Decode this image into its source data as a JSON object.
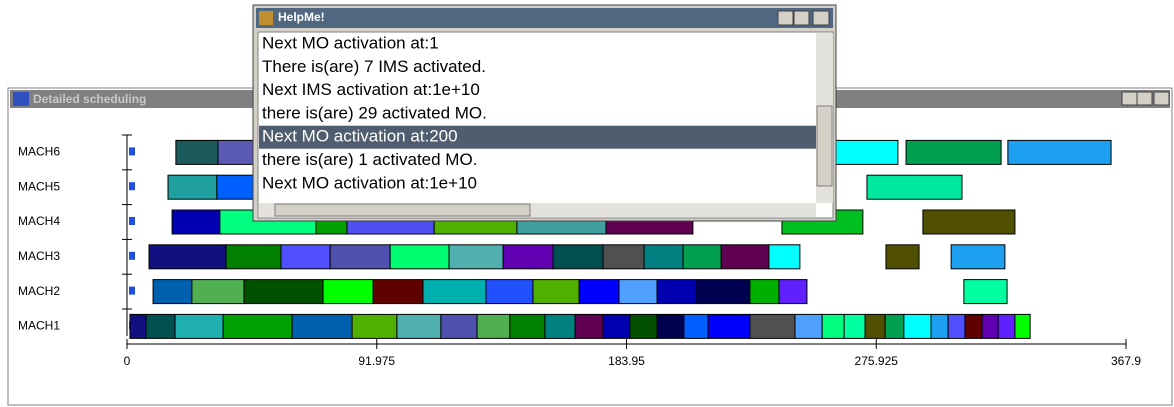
{
  "main_window": {
    "title": "Detailed scheduling"
  },
  "gantt": {
    "xlim": [
      0,
      367.9
    ],
    "xticks": [
      0,
      91.975,
      183.95,
      275.925,
      367.9
    ],
    "machines": [
      {
        "name": "MACH6",
        "tasks": [
          {
            "start": 18.0,
            "end": 33.5,
            "color": "#1a5a5a"
          },
          {
            "start": 33.5,
            "end": 49.0,
            "color": "#5a5ab4"
          },
          {
            "start": 255.2,
            "end": 283.9,
            "color": "#00ffff"
          },
          {
            "start": 286.9,
            "end": 321.9,
            "color": "#00a050"
          },
          {
            "start": 324.4,
            "end": 362.4,
            "color": "#1ea0f0"
          }
        ]
      },
      {
        "name": "MACH5",
        "tasks": [
          {
            "start": 15.1,
            "end": 33.1,
            "color": "#20a0a0"
          },
          {
            "start": 33.1,
            "end": 49.0,
            "color": "#0060ff"
          },
          {
            "start": 272.5,
            "end": 307.5,
            "color": "#00e8a0"
          }
        ]
      },
      {
        "name": "MACH4",
        "tasks": [
          {
            "start": 16.6,
            "end": 34.2,
            "color": "#0000b0"
          },
          {
            "start": 34.2,
            "end": 69.6,
            "color": "#00ff80"
          },
          {
            "start": 69.6,
            "end": 81.0,
            "color": "#00a000"
          },
          {
            "start": 81.0,
            "end": 113.1,
            "color": "#5050f0"
          },
          {
            "start": 113.1,
            "end": 143.6,
            "color": "#50b000"
          },
          {
            "start": 143.6,
            "end": 176.4,
            "color": "#40a0a0"
          },
          {
            "start": 176.4,
            "end": 208.4,
            "color": "#600050"
          },
          {
            "start": 241.2,
            "end": 271.0,
            "color": "#00c020"
          },
          {
            "start": 293.1,
            "end": 327.0,
            "color": "#505000"
          }
        ]
      },
      {
        "name": "MACH3",
        "tasks": [
          {
            "start": 8.1,
            "end": 36.5,
            "color": "#101080"
          },
          {
            "start": 36.5,
            "end": 56.7,
            "color": "#008000"
          },
          {
            "start": 56.7,
            "end": 74.8,
            "color": "#5050ff"
          },
          {
            "start": 74.8,
            "end": 96.9,
            "color": "#5050b0"
          },
          {
            "start": 96.9,
            "end": 118.6,
            "color": "#00ff70"
          },
          {
            "start": 118.6,
            "end": 138.5,
            "color": "#50b0b0"
          },
          {
            "start": 138.5,
            "end": 156.9,
            "color": "#6000b0"
          },
          {
            "start": 156.9,
            "end": 175.3,
            "color": "#005050"
          },
          {
            "start": 175.3,
            "end": 190.4,
            "color": "#505050"
          },
          {
            "start": 190.4,
            "end": 204.8,
            "color": "#008080"
          },
          {
            "start": 204.8,
            "end": 218.8,
            "color": "#00a050"
          },
          {
            "start": 218.8,
            "end": 236.4,
            "color": "#600050"
          },
          {
            "start": 236.4,
            "end": 247.8,
            "color": "#00ffff"
          },
          {
            "start": 279.5,
            "end": 291.7,
            "color": "#505000"
          },
          {
            "start": 303.5,
            "end": 323.3,
            "color": "#1ea0f0"
          }
        ]
      },
      {
        "name": "MACH2",
        "tasks": [
          {
            "start": 9.6,
            "end": 23.9,
            "color": "#0060b0"
          },
          {
            "start": 23.9,
            "end": 43.1,
            "color": "#50b050"
          },
          {
            "start": 43.1,
            "end": 72.2,
            "color": "#005000"
          },
          {
            "start": 72.2,
            "end": 90.6,
            "color": "#00ff00"
          },
          {
            "start": 90.6,
            "end": 109.0,
            "color": "#600000"
          },
          {
            "start": 109.0,
            "end": 132.2,
            "color": "#00b0b0"
          },
          {
            "start": 132.2,
            "end": 149.5,
            "color": "#2050ff"
          },
          {
            "start": 149.5,
            "end": 166.5,
            "color": "#50b000"
          },
          {
            "start": 166.5,
            "end": 181.2,
            "color": "#0000ff"
          },
          {
            "start": 181.2,
            "end": 195.2,
            "color": "#50a0ff"
          },
          {
            "start": 195.2,
            "end": 209.9,
            "color": "#0000b0"
          },
          {
            "start": 209.9,
            "end": 229.4,
            "color": "#000050"
          },
          {
            "start": 229.4,
            "end": 240.1,
            "color": "#00b000"
          },
          {
            "start": 240.1,
            "end": 250.4,
            "color": "#6020ff"
          },
          {
            "start": 308.2,
            "end": 324.1,
            "color": "#00ffa0"
          }
        ]
      },
      {
        "name": "MACH1",
        "tasks": [
          {
            "start": 1.1,
            "end": 7.0,
            "color": "#101080"
          },
          {
            "start": 7.0,
            "end": 17.7,
            "color": "#005050"
          },
          {
            "start": 17.7,
            "end": 35.4,
            "color": "#20b0b0"
          },
          {
            "start": 35.4,
            "end": 60.8,
            "color": "#00a000"
          },
          {
            "start": 60.8,
            "end": 82.9,
            "color": "#0060b0"
          },
          {
            "start": 82.9,
            "end": 99.4,
            "color": "#50b000"
          },
          {
            "start": 99.4,
            "end": 115.6,
            "color": "#50b0b0"
          },
          {
            "start": 115.6,
            "end": 128.9,
            "color": "#5050b0"
          },
          {
            "start": 128.9,
            "end": 141.0,
            "color": "#50b050"
          },
          {
            "start": 141.0,
            "end": 153.9,
            "color": "#008000"
          },
          {
            "start": 153.9,
            "end": 165.0,
            "color": "#008080"
          },
          {
            "start": 165.0,
            "end": 175.3,
            "color": "#600050"
          },
          {
            "start": 175.3,
            "end": 185.2,
            "color": "#0000b0"
          },
          {
            "start": 185.2,
            "end": 195.2,
            "color": "#005000"
          },
          {
            "start": 195.2,
            "end": 205.1,
            "color": "#000050"
          },
          {
            "start": 205.1,
            "end": 214.0,
            "color": "#0060ff"
          },
          {
            "start": 214.0,
            "end": 229.4,
            "color": "#0000ff"
          },
          {
            "start": 229.4,
            "end": 246.0,
            "color": "#505050"
          },
          {
            "start": 246.0,
            "end": 256.0,
            "color": "#50a0ff"
          },
          {
            "start": 256.0,
            "end": 264.1,
            "color": "#00ff80"
          },
          {
            "start": 264.1,
            "end": 271.8,
            "color": "#00ffa0"
          },
          {
            "start": 271.8,
            "end": 279.2,
            "color": "#505000"
          },
          {
            "start": 279.2,
            "end": 286.1,
            "color": "#00a050"
          },
          {
            "start": 286.1,
            "end": 296.1,
            "color": "#00ffff"
          },
          {
            "start": 296.1,
            "end": 302.4,
            "color": "#1ea0f0"
          },
          {
            "start": 302.4,
            "end": 308.6,
            "color": "#5050ff"
          },
          {
            "start": 308.6,
            "end": 314.9,
            "color": "#600000"
          },
          {
            "start": 314.9,
            "end": 320.8,
            "color": "#6000b0"
          },
          {
            "start": 320.8,
            "end": 327.0,
            "color": "#6020ff"
          },
          {
            "start": 327.0,
            "end": 332.6,
            "color": "#00ff00"
          }
        ]
      }
    ]
  },
  "dialog": {
    "title": "HelpMe!",
    "selected": 4,
    "lines": [
      "Next MO activation at:1",
      "There is(are) 7 IMS activated.",
      "Next IMS activation at:1e+10",
      "there is(are) 29 activated MO.",
      "Next MO activation at:200",
      "there is(are) 1 activated MO.",
      "Next MO activation at:1e+10"
    ]
  }
}
